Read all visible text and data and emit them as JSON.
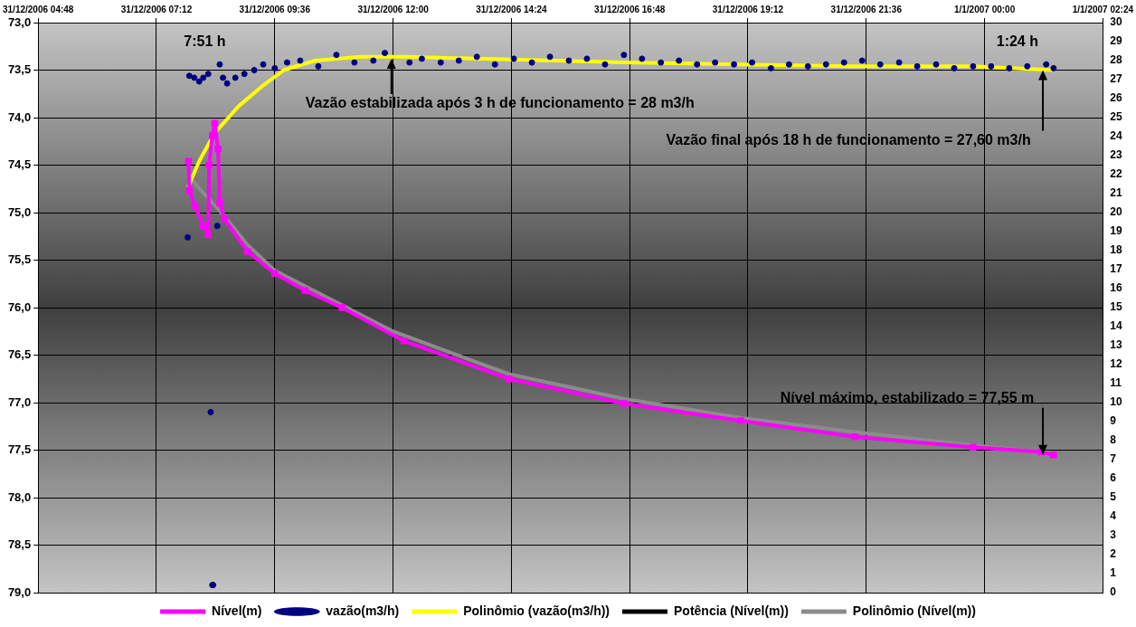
{
  "chart_data": {
    "type": "line",
    "xlim": [
      "2006-12-31T04:48",
      "2007-01-01T02:24"
    ],
    "xticks": [
      {
        "value": "2006-12-31T04:48",
        "label": "31/12/2006 04:48"
      },
      {
        "value": "2006-12-31T07:12",
        "label": "31/12/2006 07:12"
      },
      {
        "value": "2006-12-31T09:36",
        "label": "31/12/2006 09:36"
      },
      {
        "value": "2006-12-31T12:00",
        "label": "31/12/2006 12:00"
      },
      {
        "value": "2006-12-31T14:24",
        "label": "31/12/2006 14:24"
      },
      {
        "value": "2006-12-31T16:48",
        "label": "31/12/2006 16:48"
      },
      {
        "value": "2006-12-31T19:12",
        "label": "31/12/2006 19:12"
      },
      {
        "value": "2006-12-31T21:36",
        "label": "31/12/2006 21:36"
      },
      {
        "value": "2007-01-01T00:00",
        "label": "1/1/2007 00:00"
      },
      {
        "value": "2007-01-01T02:24",
        "label": "1/1/2007 02:24"
      }
    ],
    "ylim": [
      79,
      73
    ],
    "yticks": [
      {
        "value": 73,
        "label": "73,0"
      },
      {
        "value": 73.5,
        "label": "73,5"
      },
      {
        "value": 74,
        "label": "74,0"
      },
      {
        "value": 74.5,
        "label": "74,5"
      },
      {
        "value": 75,
        "label": "75,0"
      },
      {
        "value": 75.5,
        "label": "75,5"
      },
      {
        "value": 76,
        "label": "76,0"
      },
      {
        "value": 76.5,
        "label": "76,5"
      },
      {
        "value": 77,
        "label": "77,0"
      },
      {
        "value": 77.5,
        "label": "77,5"
      },
      {
        "value": 78,
        "label": "78,0"
      },
      {
        "value": 78.5,
        "label": "78,5"
      },
      {
        "value": 79,
        "label": "79,0"
      }
    ],
    "y2lim": [
      0,
      30
    ],
    "y2ticks": [
      0,
      1,
      2,
      3,
      4,
      5,
      6,
      7,
      8,
      9,
      10,
      11,
      12,
      13,
      14,
      15,
      16,
      17,
      18,
      19,
      20,
      21,
      22,
      23,
      24,
      25,
      26,
      27,
      28,
      29,
      30
    ],
    "grid": true,
    "legend": "bottom",
    "series": [
      {
        "name": "Nível(m)",
        "marker": "square",
        "color": "#ff00ff",
        "x": [
          "2006-12-31T07:51",
          "2006-12-31T07:52",
          "2006-12-31T07:59",
          "2006-12-31T08:09",
          "2006-12-31T08:15",
          "2006-12-31T08:16",
          "2006-12-31T08:20",
          "2006-12-31T08:23",
          "2006-12-31T08:27",
          "2006-12-31T08:29",
          "2006-12-31T08:35",
          "2006-12-31T09:03",
          "2006-12-31T09:36",
          "2006-12-31T10:13",
          "2006-12-31T10:58",
          "2006-12-31T12:13",
          "2006-12-31T14:21",
          "2006-12-31T16:41",
          "2006-12-31T19:03",
          "2006-12-31T21:22",
          "2006-12-31T23:46",
          "2007-01-01T01:09",
          "2007-01-01T01:24"
        ],
        "values": [
          74.46,
          74.77,
          74.93,
          75.14,
          75.23,
          74.5,
          74.19,
          74.06,
          74.33,
          74.9,
          75.07,
          75.41,
          75.64,
          75.82,
          76.0,
          76.35,
          76.75,
          77.01,
          77.19,
          77.36,
          77.47,
          77.52,
          77.55
        ]
      },
      {
        "name": "vazão(m3/h)",
        "type": "scatter",
        "marker": "circle",
        "axis": "y2",
        "color": "#000080",
        "x": [
          "2006-12-31T07:50",
          "2006-12-31T07:52",
          "2006-12-31T07:58",
          "2006-12-31T08:04",
          "2006-12-31T08:09",
          "2006-12-31T08:15",
          "2006-12-31T08:18",
          "2006-12-31T08:20",
          "2006-12-31T08:21",
          "2006-12-31T08:26",
          "2006-12-31T08:29",
          "2006-12-31T08:33",
          "2006-12-31T08:38",
          "2006-12-31T08:48",
          "2006-12-31T08:59",
          "2006-12-31T09:11",
          "2006-12-31T09:22",
          "2006-12-31T09:36",
          "2006-12-31T09:51",
          "2006-12-31T10:07",
          "2006-12-31T10:29",
          "2006-12-31T10:51",
          "2006-12-31T11:13",
          "2006-12-31T11:36",
          "2006-12-31T11:50",
          "2006-12-31T12:20",
          "2006-12-31T12:35",
          "2006-12-31T12:58",
          "2006-12-31T13:20",
          "2006-12-31T13:42",
          "2006-12-31T14:04",
          "2006-12-31T14:27",
          "2006-12-31T14:49",
          "2006-12-31T15:11",
          "2006-12-31T15:34",
          "2006-12-31T15:56",
          "2006-12-31T16:18",
          "2006-12-31T16:41",
          "2006-12-31T17:03",
          "2006-12-31T17:26",
          "2006-12-31T17:48",
          "2006-12-31T18:10",
          "2006-12-31T18:32",
          "2006-12-31T18:55",
          "2006-12-31T19:17",
          "2006-12-31T19:40",
          "2006-12-31T20:02",
          "2006-12-31T20:25",
          "2006-12-31T20:47",
          "2006-12-31T21:09",
          "2006-12-31T21:31",
          "2006-12-31T21:53",
          "2006-12-31T22:16",
          "2006-12-31T22:38",
          "2006-12-31T23:01",
          "2006-12-31T23:23",
          "2006-12-31T23:46",
          "2007-01-01T00:08",
          "2007-01-01T00:30",
          "2007-01-01T00:52",
          "2007-01-01T01:15",
          "2007-01-01T01:24"
        ],
        "values": [
          18.7,
          27.2,
          27.1,
          26.9,
          27.1,
          27.3,
          9.5,
          0.4,
          0.4,
          19.3,
          27.8,
          27.1,
          26.8,
          27.1,
          27.3,
          27.5,
          27.8,
          27.6,
          27.9,
          28.0,
          27.7,
          28.3,
          27.9,
          28.0,
          28.4,
          27.9,
          28.1,
          27.9,
          28.0,
          28.2,
          27.8,
          28.1,
          27.9,
          28.2,
          28.0,
          28.1,
          27.8,
          28.3,
          28.1,
          27.9,
          28.0,
          27.8,
          27.9,
          27.8,
          27.9,
          27.6,
          27.8,
          27.7,
          27.8,
          27.9,
          28.0,
          27.8,
          27.9,
          27.7,
          27.8,
          27.6,
          27.7,
          27.7,
          27.6,
          27.7,
          27.8,
          27.6
        ]
      },
      {
        "name": "Polinômio (vazão(m3/h))",
        "marker": "none",
        "axis": "y2",
        "color": "#ffff00",
        "x": [
          "2006-12-31T07:51",
          "2006-12-31T08:04",
          "2006-12-31T08:23",
          "2006-12-31T08:52",
          "2006-12-31T09:22",
          "2006-12-31T09:47",
          "2006-12-31T10:25",
          "2006-12-31T11:20",
          "2006-12-31T12:16",
          "2006-12-31T16:41",
          "2006-12-31T19:03",
          "2006-12-31T21:22",
          "2006-12-31T23:46",
          "2007-01-01T01:24"
        ],
        "values": [
          21.4,
          22.7,
          24.2,
          25.6,
          26.7,
          27.5,
          28.0,
          28.2,
          28.2,
          27.9,
          27.8,
          27.7,
          27.7,
          27.5
        ]
      },
      {
        "name": "Potência (Nível(m))",
        "marker": "none",
        "color": "#000000"
      },
      {
        "name": "Polinômio (Nível(m))",
        "marker": "none",
        "color": "#8c8c8c",
        "x": [
          "2006-12-31T07:51",
          "2006-12-31T08:31",
          "2006-12-31T09:03",
          "2006-12-31T09:36",
          "2006-12-31T12:00",
          "2006-12-31T14:21",
          "2006-12-31T16:41",
          "2006-12-31T19:03",
          "2006-12-31T21:22",
          "2006-12-31T23:46",
          "2007-01-01T01:24"
        ],
        "values": [
          74.62,
          75.0,
          75.34,
          75.61,
          76.25,
          76.7,
          76.96,
          77.16,
          77.31,
          77.45,
          77.53
        ]
      }
    ],
    "annotations": [
      "7:51 h",
      "1:24 h",
      {
        "text": "Vazão estabilizada após 3 h de funcionamento = 28 m3/h",
        "x": "2006-12-31T11:58",
        "y": 73.38
      },
      {
        "text": "Vazão final após 18 h de funcionamento = 27,60 m3/h",
        "x": "2007-01-01T01:11",
        "y": 73.5
      },
      {
        "text": "Nível máximo, estabilizado = 77,55 m",
        "x": "2007-01-01T01:11",
        "y": 77.55
      }
    ]
  }
}
